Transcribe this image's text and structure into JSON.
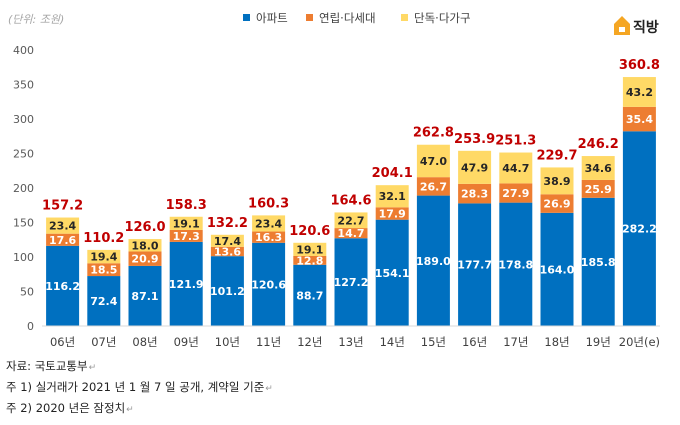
{
  "chart_data": {
    "type": "bar",
    "stacked": true,
    "unit_label": "(단위: 조원)",
    "categories": [
      "06년",
      "07년",
      "08년",
      "09년",
      "10년",
      "11년",
      "12년",
      "13년",
      "14년",
      "15년",
      "16년",
      "17년",
      "18년",
      "19년",
      "20년(e)"
    ],
    "series": [
      {
        "name": "아파트",
        "color": "#0070c0",
        "label_color": "#ffffff",
        "values": [
          116.2,
          72.4,
          87.1,
          121.9,
          101.2,
          120.6,
          88.7,
          127.2,
          154.1,
          189.0,
          177.7,
          178.8,
          164.0,
          185.8,
          282.2
        ]
      },
      {
        "name": "연립·다세대",
        "color": "#ed7d31",
        "label_color": "#ffffff",
        "values": [
          17.6,
          18.5,
          20.9,
          17.3,
          13.6,
          16.3,
          12.8,
          14.7,
          17.9,
          26.7,
          28.3,
          27.9,
          26.9,
          25.9,
          35.4
        ]
      },
      {
        "name": "단독·다가구",
        "color": "#ffd966",
        "label_color": "#262626",
        "values": [
          23.4,
          19.4,
          18.0,
          19.1,
          17.4,
          23.4,
          19.1,
          22.7,
          32.1,
          47.0,
          47.9,
          44.7,
          38.9,
          34.6,
          43.2
        ]
      }
    ],
    "totals": [
      "157.2",
      "110.2",
      "126.0",
      "158.3",
      "132.2",
      "160.3",
      "120.6",
      "164.6",
      "204.1",
      "262.8",
      "253.9",
      "251.3",
      "229.7",
      "246.2",
      "360.8"
    ],
    "y_ticks": [
      "0",
      "50",
      "100",
      "150",
      "200",
      "250",
      "300",
      "350",
      "400"
    ],
    "ylim": [
      0,
      400
    ],
    "grid": false,
    "legend_position": "top"
  },
  "logo": {
    "text": "직방",
    "icon": "house-icon",
    "color": "#f5a623"
  },
  "notes": {
    "source": "자료: 국토교통부",
    "note1": "주 1) 실거래가 2021 년 1 월 7 일 공개, 계약일 기준",
    "note2": "주 2) 2020 년은 잠정치",
    "paragraph_mark": "↵"
  }
}
